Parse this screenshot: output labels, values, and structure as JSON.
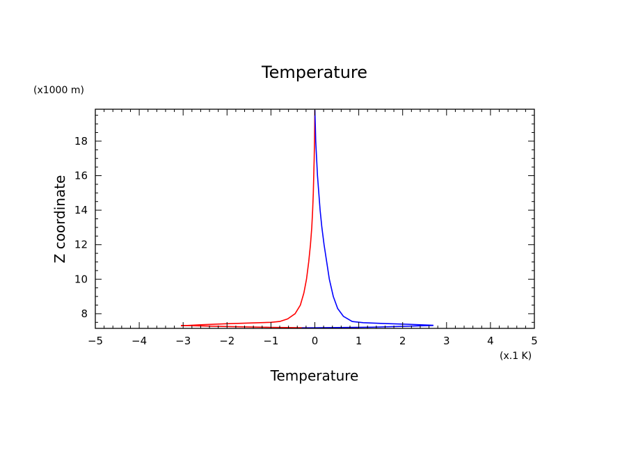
{
  "chart_data": {
    "type": "line",
    "title": "Temperature",
    "xlabel": "Temperature",
    "ylabel": "Z coordinate",
    "x_unit": "(x.1 K)",
    "y_unit": "(x1000 m)",
    "xlim": [
      -5,
      5
    ],
    "ylim": [
      7.15,
      19.85
    ],
    "x_ticks": [
      "−5",
      "−4",
      "−3",
      "−2",
      "−1",
      "0",
      "1",
      "2",
      "3",
      "4",
      "5"
    ],
    "y_ticks": [
      "8",
      "10",
      "12",
      "14",
      "16",
      "18"
    ],
    "grid": false,
    "series": [
      {
        "color": "#ff0000",
        "points": [
          [
            -3.05,
            7.3
          ],
          [
            -2.6,
            7.36
          ],
          [
            -2.0,
            7.42
          ],
          [
            -1.5,
            7.46
          ],
          [
            -1.0,
            7.5
          ],
          [
            -0.8,
            7.55
          ],
          [
            -0.62,
            7.7
          ],
          [
            -0.45,
            8.0
          ],
          [
            -0.33,
            8.5
          ],
          [
            -0.25,
            9.2
          ],
          [
            -0.19,
            10.0
          ],
          [
            -0.14,
            11.0
          ],
          [
            -0.1,
            12.0
          ],
          [
            -0.07,
            13.0
          ],
          [
            -0.05,
            14.0
          ],
          [
            -0.035,
            15.0
          ],
          [
            -0.025,
            16.0
          ],
          [
            -0.015,
            17.0
          ],
          [
            -0.008,
            18.0
          ],
          [
            -0.003,
            19.0
          ],
          [
            0.0,
            19.8
          ]
        ]
      },
      {
        "color": "#0000ff",
        "points": [
          [
            0.0,
            19.8
          ],
          [
            0.01,
            19.0
          ],
          [
            0.02,
            18.0
          ],
          [
            0.04,
            17.0
          ],
          [
            0.06,
            16.0
          ],
          [
            0.09,
            15.0
          ],
          [
            0.12,
            14.0
          ],
          [
            0.16,
            13.0
          ],
          [
            0.21,
            12.0
          ],
          [
            0.27,
            11.0
          ],
          [
            0.33,
            10.0
          ],
          [
            0.42,
            9.0
          ],
          [
            0.52,
            8.3
          ],
          [
            0.65,
            7.85
          ],
          [
            0.85,
            7.55
          ],
          [
            1.1,
            7.48
          ],
          [
            1.6,
            7.43
          ],
          [
            2.1,
            7.39
          ],
          [
            2.7,
            7.33
          ]
        ]
      },
      {
        "color": "#ff0000",
        "points": [
          [
            -3.05,
            7.32
          ],
          [
            -2.0,
            7.26
          ],
          [
            -1.0,
            7.21
          ],
          [
            0.0,
            7.18
          ],
          [
            1.0,
            7.2
          ]
        ]
      },
      {
        "color": "#0000ff",
        "points": [
          [
            -0.3,
            7.18
          ],
          [
            0.5,
            7.2
          ],
          [
            1.3,
            7.22
          ],
          [
            2.0,
            7.27
          ],
          [
            2.7,
            7.32
          ]
        ]
      }
    ]
  }
}
